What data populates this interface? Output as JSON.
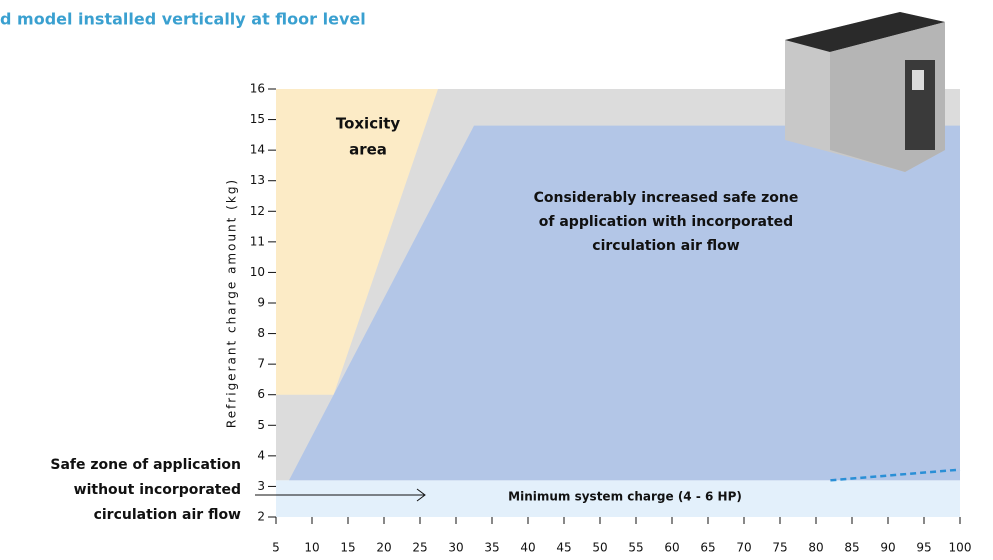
{
  "chart_data": {
    "type": "area",
    "title": "d model installed vertically at floor level",
    "ylabel": "Refrigerant charge amount (kg)",
    "xlim": [
      5,
      100
    ],
    "ylim": [
      2,
      16
    ],
    "xticks": [
      5,
      10,
      15,
      20,
      25,
      30,
      35,
      40,
      45,
      50,
      55,
      60,
      65,
      70,
      75,
      80,
      85,
      90,
      95,
      100
    ],
    "yticks": [
      2,
      3,
      4,
      5,
      6,
      7,
      8,
      9,
      10,
      11,
      12,
      13,
      14,
      15,
      16
    ],
    "regions": [
      {
        "color": "#dcdcdc",
        "x": [
          5,
          5,
          100,
          100
        ],
        "y": [
          3.2,
          16,
          16,
          3.2
        ]
      },
      {
        "color": "#fcebc6",
        "x": [
          5,
          13,
          27.5,
          5
        ],
        "y": [
          6,
          6,
          16,
          16
        ]
      },
      {
        "color": "#b3c6e7",
        "x": [
          6.8,
          32.5,
          100,
          100
        ],
        "y": [
          3.2,
          14.8,
          14.8,
          3.2
        ]
      },
      {
        "color": "#e3f0fb",
        "x": [
          5,
          5,
          100,
          100
        ],
        "y": [
          2,
          3.2,
          3.2,
          2
        ]
      }
    ],
    "series": [
      {
        "color": "#2a8fd6",
        "dashed": true,
        "x": [
          82,
          100
        ],
        "y": [
          3.2,
          3.55
        ]
      }
    ],
    "toxicity_label": [
      "Toxicity",
      "area"
    ],
    "zone_label": [
      "Considerably increased safe zone",
      "of application with incorporated",
      "circulation air flow"
    ],
    "band_label": "Minimum system charge (4 - 6 HP)",
    "side_label": [
      "Safe zone of application",
      "without",
      "incorporated",
      "circulation air flow"
    ]
  }
}
